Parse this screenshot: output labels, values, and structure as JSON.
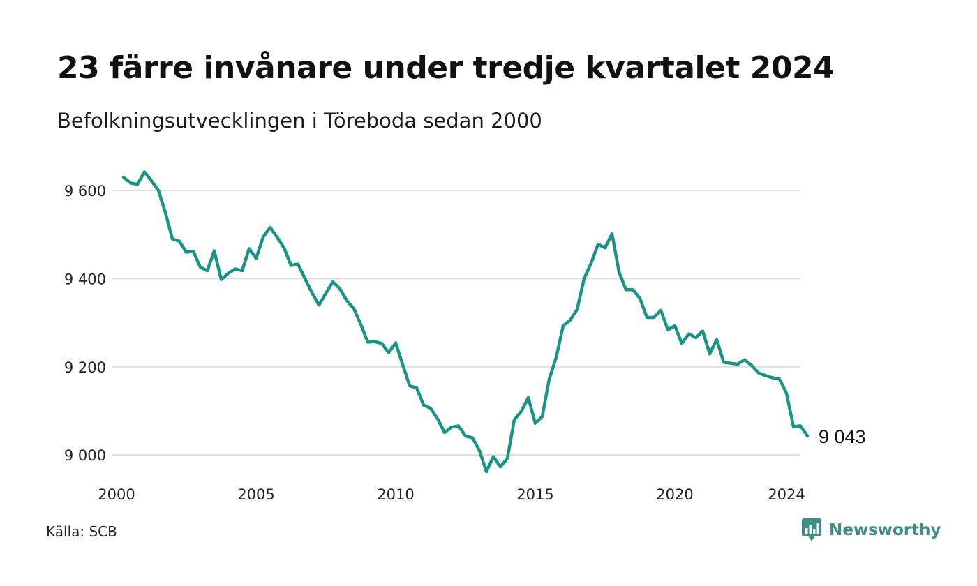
{
  "header": {
    "title": "23 färre invånare under tredje kvartalet 2024",
    "subtitle": "Befolkningsutvecklingen i Töreboda sedan 2000"
  },
  "footer": {
    "source": "Källa: SCB",
    "brand": "Newsworthy",
    "brand_icon": "chart-bubble-icon"
  },
  "colors": {
    "line": "#1a9486",
    "grid": "#dddddd",
    "brand": "#3e8e86"
  },
  "chart_data": {
    "type": "line",
    "title": "23 färre invånare under tredje kvartalet 2024",
    "subtitle": "Befolkningsutvecklingen i Töreboda sedan 2000",
    "xlabel": "",
    "ylabel": "",
    "xlim": [
      2000,
      2024.5
    ],
    "ylim": [
      8940,
      9665
    ],
    "grid": true,
    "x_ticks": [
      2000,
      2005,
      2010,
      2015,
      2020,
      2024
    ],
    "x_tick_labels": [
      "2000",
      "2005",
      "2010",
      "2015",
      "2020",
      "2024"
    ],
    "y_ticks": [
      9000,
      9200,
      9400,
      9600
    ],
    "y_tick_labels": [
      "9 000",
      "9 200",
      "9 400",
      "9 600"
    ],
    "end_label": "9 043",
    "series": [
      {
        "x": [
          2000.25,
          2000.5,
          2000.75,
          2001.0,
          2001.25,
          2001.5,
          2001.75,
          2002.0,
          2002.25,
          2002.5,
          2002.75,
          2003.0,
          2003.25,
          2003.5,
          2003.75,
          2004.0,
          2004.25,
          2004.5,
          2004.75,
          2005.0,
          2005.25,
          2005.5,
          2005.75,
          2006.0,
          2006.25,
          2006.5,
          2006.75,
          2007.0,
          2007.25,
          2007.5,
          2007.75,
          2008.0,
          2008.25,
          2008.5,
          2008.75,
          2009.0,
          2009.25,
          2009.5,
          2009.75,
          2010.0,
          2010.25,
          2010.5,
          2010.75,
          2011.0,
          2011.25,
          2011.5,
          2011.75,
          2012.0,
          2012.25,
          2012.5,
          2012.75,
          2013.0,
          2013.25,
          2013.5,
          2013.75,
          2014.0,
          2014.25,
          2014.5,
          2014.75,
          2015.0,
          2015.25,
          2015.5,
          2015.75,
          2016.0,
          2016.25,
          2016.5,
          2016.75,
          2017.0,
          2017.25,
          2017.5,
          2017.75,
          2018.0,
          2018.25,
          2018.5,
          2018.75,
          2019.0,
          2019.25,
          2019.5,
          2019.75,
          2020.0,
          2020.25,
          2020.5,
          2020.75,
          2021.0,
          2021.25,
          2021.5,
          2021.75,
          2022.0,
          2022.25,
          2022.5,
          2022.75,
          2023.0,
          2023.25,
          2023.5,
          2023.75,
          2024.0,
          2024.25,
          2024.5
        ],
        "y": [
          9630,
          9617,
          9614,
          9642,
          9622,
          9600,
          9550,
          9490,
          9485,
          9460,
          9462,
          9426,
          9418,
          9463,
          9398,
          9412,
          9422,
          9418,
          9468,
          9446,
          9494,
          9516,
          9494,
          9470,
          9430,
          9433,
          9400,
          9368,
          9340,
          9367,
          9393,
          9377,
          9350,
          9332,
          9296,
          9256,
          9257,
          9253,
          9232,
          9254,
          9205,
          9157,
          9152,
          9113,
          9106,
          9082,
          9051,
          9063,
          9066,
          9043,
          9039,
          9010,
          8962,
          8996,
          8973,
          8992,
          9080,
          9099,
          9130,
          9072,
          9087,
          9172,
          9221,
          9293,
          9306,
          9330,
          9400,
          9435,
          9478,
          9470,
          9502,
          9415,
          9375,
          9375,
          9355,
          9312,
          9312,
          9328,
          9284,
          9293,
          9253,
          9275,
          9266,
          9281,
          9229,
          9262,
          9210,
          9208,
          9206,
          9216,
          9203,
          9186,
          9180,
          9175,
          9172,
          9140,
          9064,
          9066
        ]
      }
    ],
    "final_point": {
      "x": 2024.75,
      "y": 9043
    }
  }
}
